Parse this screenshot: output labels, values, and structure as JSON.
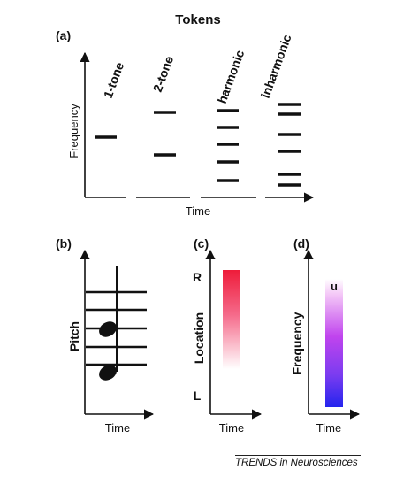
{
  "title": "Tokens",
  "panel_a": {
    "tag": "(a)",
    "ylabel": "Frequency",
    "xlabel": "Time",
    "tokens": [
      "1-tone",
      "2-tone",
      "harmonic",
      "inharmonic"
    ]
  },
  "panel_b": {
    "tag": "(b)",
    "ylabel": "Pitch",
    "xlabel": "Time"
  },
  "panel_c": {
    "tag": "(c)",
    "ylabel": "Location",
    "xlabel": "Time",
    "top_label": "R",
    "bottom_label": "L"
  },
  "panel_d": {
    "tag": "(d)",
    "ylabel": "Frequency",
    "xlabel": "Time",
    "note_label": "u"
  },
  "footer": {
    "journal": "TRENDS in Neurosciences"
  },
  "colors": {
    "ink": "#111111",
    "location_gradient": [
      "#ee1c3a",
      "#ffffff"
    ],
    "frequency_gradient": [
      "#ffffff",
      "#cc44ee",
      "#2222ee"
    ]
  }
}
